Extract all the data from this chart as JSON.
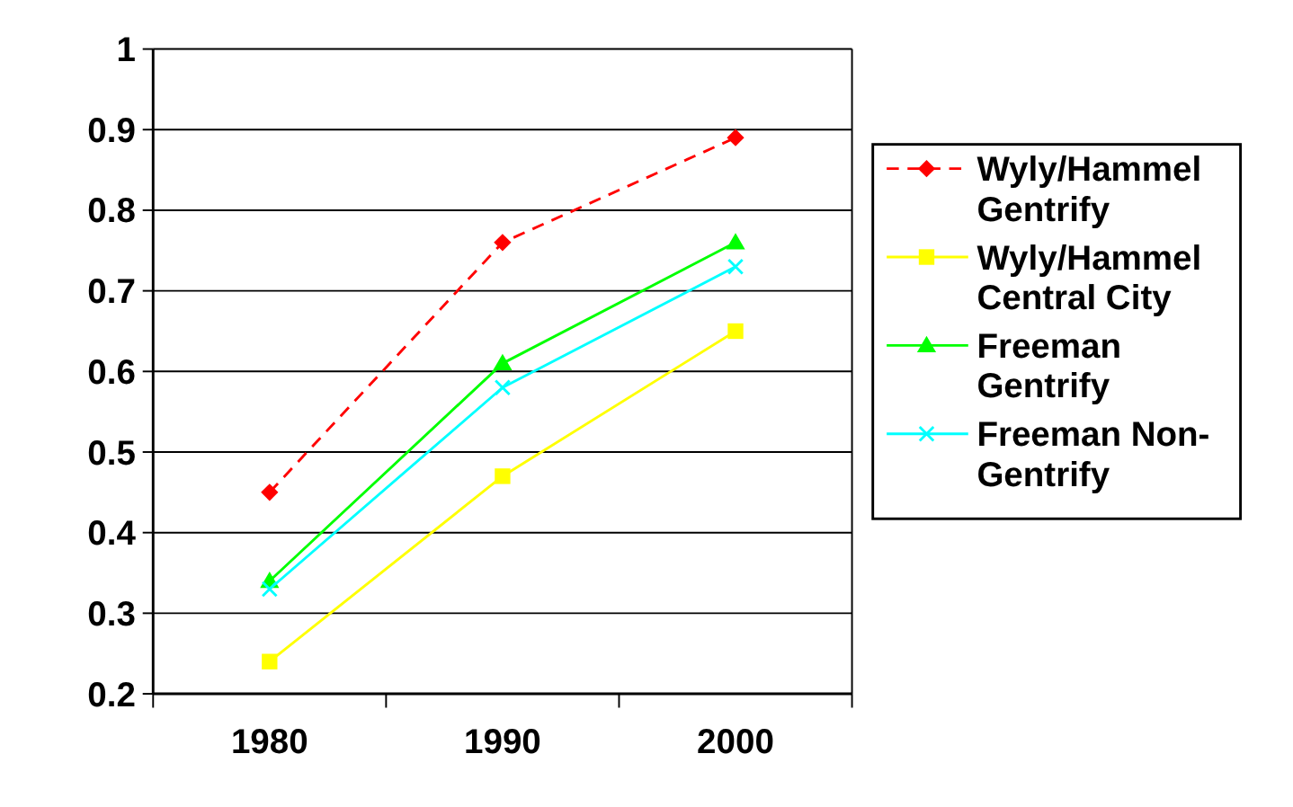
{
  "chart_data": {
    "type": "line",
    "categories": [
      "1980",
      "1990",
      "2000"
    ],
    "series": [
      {
        "name": "Wyly/Hammel Gentrify",
        "color": "#ff0000",
        "values": [
          0.45,
          0.76,
          0.89
        ],
        "marker": "diamond",
        "line_style": "dashed"
      },
      {
        "name": "Wyly/Hammel Central City",
        "color": "#ffff00",
        "values": [
          0.24,
          0.47,
          0.65
        ],
        "marker": "square",
        "line_style": "solid"
      },
      {
        "name": "Freeman Gentrify",
        "color": "#00ff00",
        "values": [
          0.34,
          0.61,
          0.76
        ],
        "marker": "triangle",
        "line_style": "solid"
      },
      {
        "name": "Freeman Non-Gentrify",
        "color": "#00ffff",
        "values": [
          0.33,
          0.58,
          0.73
        ],
        "marker": "cross",
        "line_style": "solid"
      }
    ],
    "ylim": [
      0.2,
      1
    ],
    "yticks": [
      0.2,
      0.3,
      0.4,
      0.5,
      0.6,
      0.7,
      0.8,
      0.9,
      1
    ],
    "grid": "y",
    "legend": "right"
  }
}
